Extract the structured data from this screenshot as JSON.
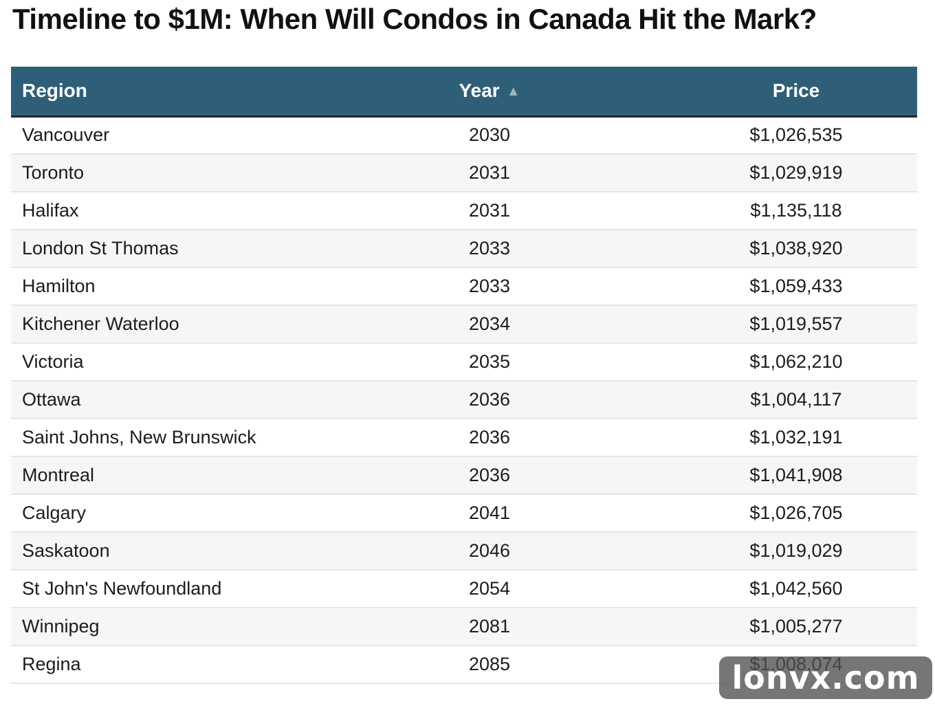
{
  "title": "Timeline to $1M: When Will Condos in Canada Hit the Mark?",
  "watermark": "lonvx.com",
  "table": {
    "headers": {
      "region": "Region",
      "year": "Year",
      "price": "Price",
      "sort_indicator": "▲"
    },
    "rows": [
      {
        "region": "Vancouver",
        "year": "2030",
        "price": "$1,026,535"
      },
      {
        "region": "Toronto",
        "year": "2031",
        "price": "$1,029,919"
      },
      {
        "region": "Halifax",
        "year": "2031",
        "price": "$1,135,118"
      },
      {
        "region": "London St Thomas",
        "year": "2033",
        "price": "$1,038,920"
      },
      {
        "region": "Hamilton",
        "year": "2033",
        "price": "$1,059,433"
      },
      {
        "region": "Kitchener Waterloo",
        "year": "2034",
        "price": "$1,019,557"
      },
      {
        "region": "Victoria",
        "year": "2035",
        "price": "$1,062,210"
      },
      {
        "region": "Ottawa",
        "year": "2036",
        "price": "$1,004,117"
      },
      {
        "region": "Saint Johns, New Brunswick",
        "year": "2036",
        "price": "$1,032,191"
      },
      {
        "region": "Montreal",
        "year": "2036",
        "price": "$1,041,908"
      },
      {
        "region": "Calgary",
        "year": "2041",
        "price": "$1,026,705"
      },
      {
        "region": "Saskatoon",
        "year": "2046",
        "price": "$1,019,029"
      },
      {
        "region": "St John's Newfoundland",
        "year": "2054",
        "price": "$1,042,560"
      },
      {
        "region": "Winnipeg",
        "year": "2081",
        "price": "$1,005,277"
      },
      {
        "region": "Regina",
        "year": "2085",
        "price": "$1,008,074"
      }
    ]
  },
  "colors": {
    "header_bg": "#2f5f78",
    "header_text": "#ffffff",
    "row_alt": "#f6f6f6"
  },
  "chart_data": {
    "type": "table",
    "title": "Timeline to $1M: When Will Condos in Canada Hit the Mark?",
    "columns": [
      "Region",
      "Year",
      "Price"
    ],
    "sorted_by": "Year",
    "sort_order": "ascending",
    "rows": [
      [
        "Vancouver",
        2030,
        1026535
      ],
      [
        "Toronto",
        2031,
        1029919
      ],
      [
        "Halifax",
        2031,
        1135118
      ],
      [
        "London St Thomas",
        2033,
        1038920
      ],
      [
        "Hamilton",
        2033,
        1059433
      ],
      [
        "Kitchener Waterloo",
        2034,
        1019557
      ],
      [
        "Victoria",
        2035,
        1062210
      ],
      [
        "Ottawa",
        2036,
        1004117
      ],
      [
        "Saint Johns, New Brunswick",
        2036,
        1032191
      ],
      [
        "Montreal",
        2036,
        1041908
      ],
      [
        "Calgary",
        2041,
        1026705
      ],
      [
        "Saskatoon",
        2046,
        1019029
      ],
      [
        "St John's Newfoundland",
        2054,
        1042560
      ],
      [
        "Winnipeg",
        2081,
        1005277
      ],
      [
        "Regina",
        2085,
        1008074
      ]
    ]
  }
}
